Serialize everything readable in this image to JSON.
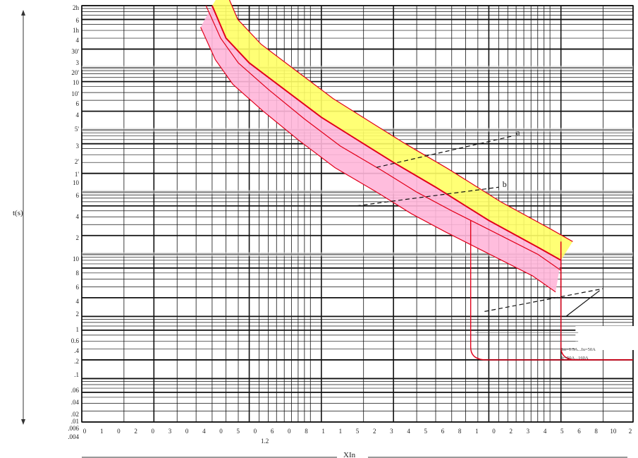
{
  "chart_data": {
    "type": "line",
    "title": "",
    "ylabel": "t(s)",
    "xlabel": "XIn",
    "x_scale": "log",
    "y_scale": "log",
    "grid": true,
    "y_tick_labels": [
      "2h",
      "6",
      "1h",
      "4",
      "30'",
      "3",
      "20'",
      "10",
      "10'",
      "6",
      "4",
      "5'",
      "3",
      "2'",
      "1'",
      "10",
      "6",
      "4",
      "2",
      "10",
      "8",
      "6",
      "4",
      "2",
      "1",
      "0.6",
      ".4",
      ".2",
      ".1",
      ".06",
      ".04",
      ".02",
      ".01",
      ".006",
      ".004"
    ],
    "x_tick_labels": [
      "0",
      "1",
      "0",
      "2",
      "0",
      "3",
      "0",
      "4",
      "0",
      "5",
      "0",
      "6",
      "0",
      "8",
      "1",
      "1",
      "5",
      "2",
      "3",
      "4",
      "5",
      "6",
      "8",
      "1",
      "0",
      "2",
      "3",
      "4",
      "5",
      "6",
      "8",
      "10",
      "2"
    ],
    "x_subtitle": "1.2",
    "series": [
      {
        "name": "a",
        "color": "#e2001a",
        "points": [
          [
            0.35,
            10000
          ],
          [
            0.4,
            3000
          ],
          [
            0.5,
            1200
          ],
          [
            0.7,
            450
          ],
          [
            1.0,
            160
          ],
          [
            1.5,
            60
          ],
          [
            2.0,
            30
          ],
          [
            3.0,
            12
          ],
          [
            4.0,
            6
          ],
          [
            5.0,
            3.5
          ],
          [
            8.0,
            1.3
          ],
          [
            10.0,
            0.8
          ]
        ]
      },
      {
        "name": "b",
        "color": "#e2001a",
        "points": [
          [
            0.33,
            10000
          ],
          [
            0.38,
            3000
          ],
          [
            0.45,
            1200
          ],
          [
            0.6,
            450
          ],
          [
            0.85,
            150
          ],
          [
            1.2,
            55
          ],
          [
            1.8,
            22
          ],
          [
            2.5,
            10
          ],
          [
            3.5,
            5
          ],
          [
            5.0,
            2.5
          ],
          [
            8.0,
            1.0
          ],
          [
            10.0,
            0.55
          ]
        ]
      }
    ],
    "band_fill_yellow": "#ffff66",
    "band_fill_pink": "#ffb6d9",
    "annotations": [
      "a",
      "b"
    ],
    "footnote": [
      "Im=1.5A...Iu=50A",
      "Ir=50A...160A"
    ]
  }
}
